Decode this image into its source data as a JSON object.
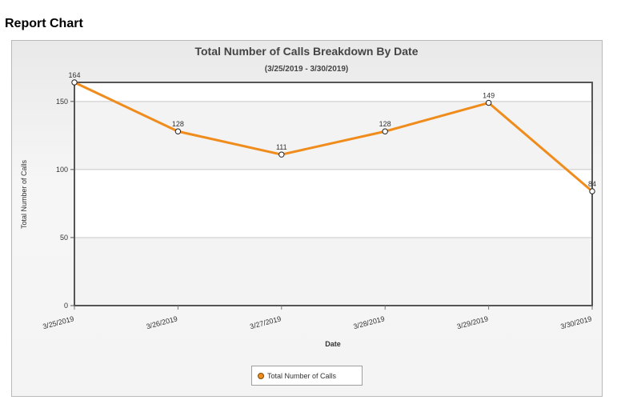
{
  "page": {
    "heading": "Report Chart"
  },
  "chart_data": {
    "type": "line",
    "title": "Total Number of Calls Breakdown By Date",
    "subtitle": "(3/25/2019 - 3/30/2019)",
    "xlabel": "Date",
    "ylabel": "Total Number of Calls",
    "categories": [
      "3/25/2019",
      "3/26/2019",
      "3/27/2019",
      "3/28/2019",
      "3/29/2019",
      "3/30/2019"
    ],
    "series": [
      {
        "name": "Total Number of Calls",
        "values": [
          164,
          128,
          111,
          128,
          149,
          84
        ],
        "color": "#f08c1c"
      }
    ],
    "ylim": [
      0,
      164
    ],
    "yticks": [
      0,
      50,
      100,
      150
    ],
    "grid": true,
    "legend": "bottom-center",
    "data_labels": true
  }
}
